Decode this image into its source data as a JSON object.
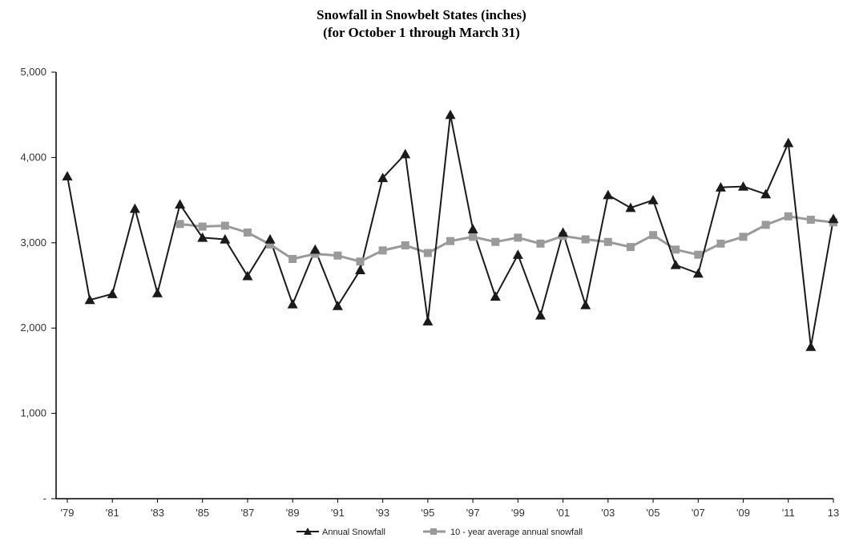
{
  "chart_data": {
    "type": "line",
    "title": "Snowfall in Snowbelt States (inches)",
    "subtitle": "(for October 1 through March 31)",
    "y_ticks": [
      "-",
      "1,000",
      "2,000",
      "3,000",
      "4,000",
      "5,000"
    ],
    "y_tick_values": [
      0,
      1000,
      2000,
      3000,
      4000,
      5000
    ],
    "ylim": [
      0,
      5000
    ],
    "x_tick_labels": [
      "'79",
      "'81",
      "'83",
      "'85",
      "'87",
      "'89",
      "'91",
      "'93",
      "'95",
      "'97",
      "'99",
      "'01",
      "'03",
      "'05",
      "'07",
      "'09",
      "'11",
      "13"
    ],
    "x_tick_years": [
      1979,
      1981,
      1983,
      1985,
      1987,
      1989,
      1991,
      1993,
      1995,
      1997,
      1999,
      2001,
      2003,
      2005,
      2007,
      2009,
      2011,
      2013
    ],
    "xlim": [
      1979,
      2013
    ],
    "legend_position": "bottom-center",
    "series": [
      {
        "name": "Annual Snowfall",
        "color": "#1a1a1a",
        "marker": "triangle",
        "x": [
          1979,
          1980,
          1981,
          1982,
          1983,
          1984,
          1985,
          1986,
          1987,
          1988,
          1989,
          1990,
          1991,
          1992,
          1993,
          1994,
          1995,
          1996,
          1997,
          1998,
          1999,
          2000,
          2001,
          2002,
          2003,
          2004,
          2005,
          2006,
          2007,
          2008,
          2009,
          2010,
          2011,
          2012,
          2013
        ],
        "values": [
          3780,
          2330,
          2400,
          3400,
          2410,
          3450,
          3060,
          3040,
          2610,
          3040,
          2280,
          2920,
          2260,
          2680,
          3760,
          4040,
          2080,
          4500,
          3160,
          2370,
          2860,
          2150,
          3120,
          2270,
          3560,
          3410,
          3500,
          2740,
          2640,
          3650,
          3660,
          3570,
          4170,
          1780,
          3280
        ]
      },
      {
        "name": "10 - year average annual snowfall",
        "color": "#9a9a9a",
        "marker": "square",
        "x": [
          1984,
          1985,
          1986,
          1987,
          1988,
          1989,
          1990,
          1991,
          1992,
          1993,
          1994,
          1995,
          1996,
          1997,
          1998,
          1999,
          2000,
          2001,
          2002,
          2003,
          2004,
          2005,
          2006,
          2007,
          2008,
          2009,
          2010,
          2011,
          2012,
          2013
        ],
        "values": [
          3220,
          3190,
          3200,
          3120,
          2980,
          2810,
          2870,
          2850,
          2780,
          2910,
          2970,
          2880,
          3020,
          3070,
          3010,
          3060,
          2990,
          3080,
          3040,
          3010,
          2950,
          3090,
          2920,
          2860,
          2990,
          3070,
          3210,
          3310,
          3270,
          3240
        ]
      }
    ]
  }
}
